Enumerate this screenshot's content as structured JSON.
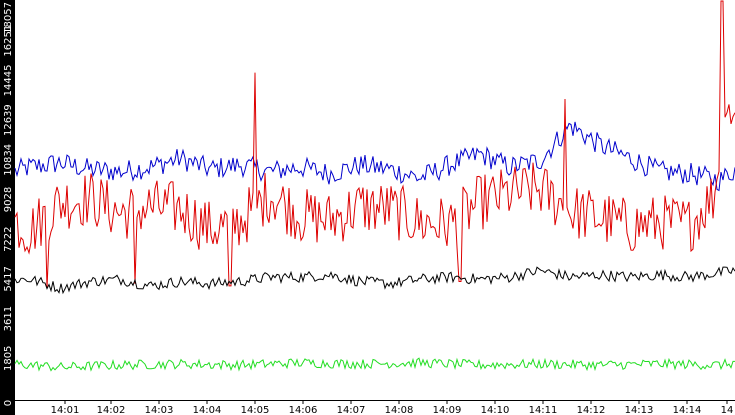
{
  "chart_data": {
    "type": "line",
    "x_tick_labels": [
      "14:01",
      "14:02",
      "14:03",
      "14:04",
      "14:05",
      "14:06",
      "14:07",
      "14:08",
      "14:09",
      "14:10",
      "14:11",
      "14:12",
      "14:13",
      "14:14",
      "14"
    ],
    "y_tick_labels": [
      "0",
      "1805",
      "3611",
      "5417",
      "7222",
      "9028",
      "10834",
      "12639",
      "14445",
      "16251",
      "18057"
    ],
    "ylim": [
      0,
      18057
    ],
    "grid": false,
    "colors": {
      "background": "#ffffff",
      "y_axis_band": "#000000",
      "y_axis_text": "#ffffff"
    },
    "series": [
      {
        "color": "#0000cc",
        "approx_points": [
          [
            0,
            10100
          ],
          [
            30,
            10500
          ],
          [
            60,
            10700
          ],
          [
            90,
            10400
          ],
          [
            120,
            10300
          ],
          [
            150,
            10500
          ],
          [
            180,
            10900
          ],
          [
            210,
            10400
          ],
          [
            240,
            10600
          ],
          [
            270,
            10300
          ],
          [
            300,
            10500
          ],
          [
            330,
            10200
          ],
          [
            360,
            10600
          ],
          [
            390,
            10400
          ],
          [
            420,
            10000
          ],
          [
            450,
            10600
          ],
          [
            480,
            11100
          ],
          [
            510,
            10500
          ],
          [
            540,
            10800
          ],
          [
            570,
            12400
          ],
          [
            600,
            11500
          ],
          [
            630,
            10900
          ],
          [
            660,
            10300
          ],
          [
            690,
            10200
          ],
          [
            720,
            9900
          ],
          [
            735,
            10400
          ]
        ]
      },
      {
        "color": "#dd0000",
        "approx_points": [
          [
            0,
            8500
          ],
          [
            30,
            7600
          ],
          [
            60,
            8900
          ],
          [
            90,
            9100
          ],
          [
            120,
            8400
          ],
          [
            150,
            8700
          ],
          [
            180,
            8600
          ],
          [
            210,
            7700
          ],
          [
            240,
            8000
          ],
          [
            270,
            9300
          ],
          [
            300,
            8300
          ],
          [
            330,
            8100
          ],
          [
            360,
            8700
          ],
          [
            390,
            8600
          ],
          [
            420,
            8000
          ],
          [
            450,
            7900
          ],
          [
            480,
            8900
          ],
          [
            510,
            9300
          ],
          [
            540,
            9500
          ],
          [
            570,
            8500
          ],
          [
            600,
            8200
          ],
          [
            630,
            7800
          ],
          [
            660,
            8000
          ],
          [
            690,
            7900
          ],
          [
            715,
            9300
          ],
          [
            725,
            14000
          ],
          [
            735,
            12500
          ]
        ],
        "spikes": [
          [
            47,
            5000
          ],
          [
            135,
            5200
          ],
          [
            230,
            5100
          ],
          [
            255,
            14800
          ],
          [
            460,
            5300
          ],
          [
            565,
            13600
          ],
          [
            722,
            18057
          ]
        ]
      },
      {
        "color": "#000000",
        "approx_points": [
          [
            0,
            5400
          ],
          [
            30,
            5400
          ],
          [
            60,
            5000
          ],
          [
            90,
            5300
          ],
          [
            120,
            5400
          ],
          [
            150,
            5100
          ],
          [
            180,
            5300
          ],
          [
            210,
            5200
          ],
          [
            240,
            5300
          ],
          [
            270,
            5500
          ],
          [
            300,
            5500
          ],
          [
            330,
            5600
          ],
          [
            360,
            5300
          ],
          [
            390,
            5200
          ],
          [
            420,
            5400
          ],
          [
            450,
            5500
          ],
          [
            480,
            5400
          ],
          [
            510,
            5500
          ],
          [
            540,
            5800
          ],
          [
            570,
            5500
          ],
          [
            600,
            5600
          ],
          [
            630,
            5500
          ],
          [
            660,
            5600
          ],
          [
            690,
            5500
          ],
          [
            720,
            5700
          ],
          [
            735,
            5800
          ]
        ]
      },
      {
        "color": "#22dd22",
        "approx_points": [
          [
            0,
            1600
          ],
          [
            60,
            1400
          ],
          [
            120,
            1500
          ],
          [
            180,
            1550
          ],
          [
            240,
            1500
          ],
          [
            300,
            1600
          ],
          [
            360,
            1550
          ],
          [
            420,
            1600
          ],
          [
            480,
            1500
          ],
          [
            540,
            1550
          ],
          [
            600,
            1500
          ],
          [
            660,
            1550
          ],
          [
            720,
            1500
          ],
          [
            735,
            1600
          ]
        ]
      }
    ]
  }
}
